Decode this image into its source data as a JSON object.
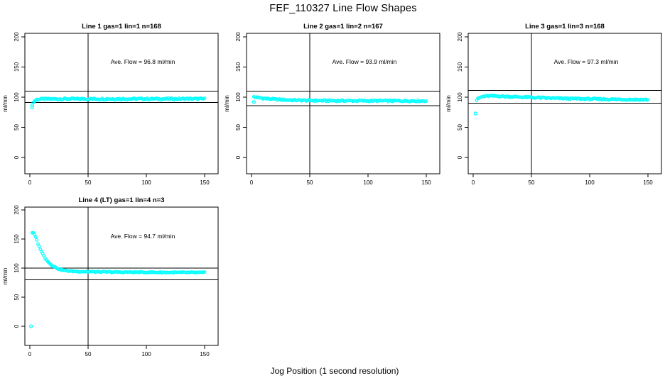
{
  "title": "FEF_110327  Line Flow Shapes",
  "xlabel": "Jog Position (1 second resolution)",
  "chart_data": {
    "type": "scatter",
    "title": "FEF_110327  Line Flow Shapes",
    "xlabel": "Jog Position (1 second resolution)",
    "ylabel": "ml/min",
    "x_ticks": [
      0,
      50,
      100,
      150
    ],
    "y_ticks": [
      0,
      50,
      100,
      150,
      200
    ],
    "xlim": [
      -4,
      161
    ],
    "ylim": [
      -27,
      206
    ],
    "grid": false,
    "legend": "none",
    "point_color": "#00ffff",
    "axis_color": "#000000",
    "vline_x": 50,
    "panels": [
      {
        "title": "Line 1 gas=1 lin=1 n=168",
        "annotation": "Ave. Flow =  96.8  ml/min",
        "ave_flow_ml_min": 96.8,
        "ref_lines": [
          110,
          91
        ],
        "x_start": 2,
        "x_end": 150,
        "profile": [
          [
            2,
            88
          ],
          [
            3,
            91
          ],
          [
            4,
            93.5
          ],
          [
            5,
            95
          ],
          [
            6,
            96
          ],
          [
            8,
            96.6
          ],
          [
            12,
            96.9
          ],
          [
            20,
            97
          ],
          [
            60,
            97.1
          ],
          [
            150,
            97.2
          ]
        ],
        "outliers": [
          [
            2,
            83
          ]
        ],
        "jitter": 1.3
      },
      {
        "title": "Line 2 gas=1 lin=2 n=167",
        "annotation": "Ave. Flow =  93.9  ml/min",
        "ave_flow_ml_min": 93.9,
        "ref_lines": [
          110,
          86
        ],
        "x_start": 2,
        "x_end": 150,
        "profile": [
          [
            2,
            100.5
          ],
          [
            4,
            99.8
          ],
          [
            6,
            99.2
          ],
          [
            10,
            98.2
          ],
          [
            15,
            97.2
          ],
          [
            20,
            96.4
          ],
          [
            30,
            95.4
          ],
          [
            40,
            94.8
          ],
          [
            60,
            94.2
          ],
          [
            80,
            94
          ],
          [
            100,
            93.9
          ],
          [
            150,
            93.8
          ]
        ],
        "outliers": [
          [
            2,
            92
          ]
        ],
        "jitter": 1.2
      },
      {
        "title": "Line 3 gas=1 lin=3 n=168",
        "annotation": "Ave. Flow =  97.3  ml/min",
        "ave_flow_ml_min": 97.3,
        "ref_lines": [
          111,
          90
        ],
        "x_start": 3,
        "x_end": 150,
        "profile": [
          [
            3,
            95
          ],
          [
            4,
            97
          ],
          [
            5,
            98.5
          ],
          [
            6,
            99.5
          ],
          [
            8,
            100.8
          ],
          [
            10,
            101.5
          ],
          [
            14,
            102
          ],
          [
            20,
            101.8
          ],
          [
            30,
            101
          ],
          [
            40,
            100.3
          ],
          [
            50,
            99.5
          ],
          [
            60,
            98.8
          ],
          [
            70,
            98.2
          ],
          [
            85,
            97.5
          ],
          [
            100,
            97
          ],
          [
            120,
            96.4
          ],
          [
            150,
            95.8
          ]
        ],
        "outliers": [
          [
            2,
            73
          ]
        ],
        "jitter": 1.2
      },
      {
        "title": "Line 4 (LT) gas=1 lin=4 n=3",
        "annotation": "Ave. Flow =  94.7  ml/min",
        "ave_flow_ml_min": 94.7,
        "ref_lines": [
          100,
          80
        ],
        "x_start": 2,
        "x_end": 150,
        "profile": [
          [
            2,
            161
          ],
          [
            3,
            160
          ],
          [
            4,
            158
          ],
          [
            5,
            153
          ],
          [
            6,
            148
          ],
          [
            7,
            142
          ],
          [
            8,
            137
          ],
          [
            9,
            133
          ],
          [
            10,
            129
          ],
          [
            12,
            121
          ],
          [
            14,
            115
          ],
          [
            16,
            110
          ],
          [
            18,
            106.5
          ],
          [
            20,
            103.5
          ],
          [
            23,
            100
          ],
          [
            26,
            97.5
          ],
          [
            30,
            95.8
          ],
          [
            35,
            94.8
          ],
          [
            40,
            94.3
          ],
          [
            50,
            93.8
          ],
          [
            60,
            93.4
          ],
          [
            80,
            93
          ],
          [
            100,
            92.8
          ],
          [
            125,
            92.5
          ],
          [
            150,
            92.3
          ]
        ],
        "outliers": [
          [
            1,
            0
          ]
        ],
        "jitter": 0.9
      }
    ]
  }
}
